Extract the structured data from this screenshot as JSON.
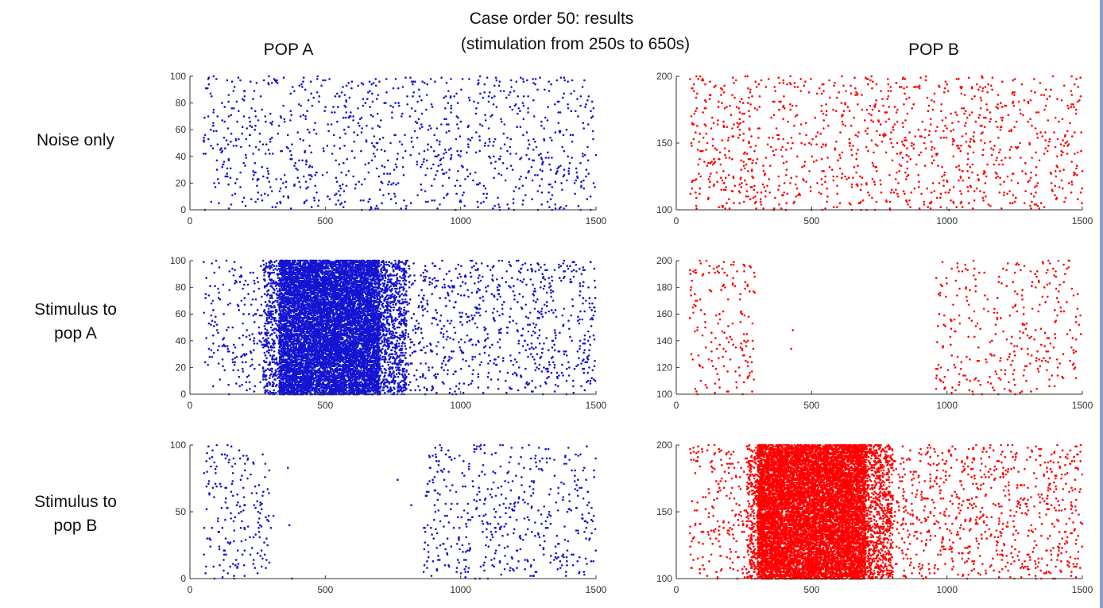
{
  "title_line1": "Case order 50: results",
  "title_line2": "(stimulation from 250s to 650s)",
  "col_a_label": "POP A",
  "col_b_label": "POP B",
  "row_labels": {
    "row1": "Noise only",
    "row2_line1": "Stimulus to",
    "row2_line2": "pop A",
    "row3_line1": "Stimulus to",
    "row3_line2": "pop B"
  },
  "colors": {
    "pop_a": "#1414d2",
    "pop_b": "#ff0000",
    "axis": "#333333"
  },
  "chart_data": [
    {
      "type": "scatter",
      "name": "POP A - Noise only",
      "xlim": [
        0,
        1500
      ],
      "ylim": [
        0,
        100
      ],
      "xticks": [
        0,
        500,
        1000,
        1500
      ],
      "yticks": [
        0,
        20,
        40,
        60,
        80,
        100
      ],
      "color": "#1414d2",
      "segments": [
        {
          "from": 50,
          "to": 1500,
          "rate": 0.7
        }
      ]
    },
    {
      "type": "scatter",
      "name": "POP B - Noise only",
      "xlim": [
        0,
        1500
      ],
      "ylim": [
        100,
        200
      ],
      "xticks": [
        0,
        500,
        1000,
        1500
      ],
      "yticks": [
        100,
        150,
        200
      ],
      "color": "#ff0000",
      "segments": [
        {
          "from": 50,
          "to": 1500,
          "rate": 0.8
        }
      ]
    },
    {
      "type": "scatter",
      "name": "POP A - Stimulus to pop A",
      "xlim": [
        0,
        1500
      ],
      "ylim": [
        0,
        100
      ],
      "xticks": [
        0,
        500,
        1000,
        1500
      ],
      "yticks": [
        0,
        20,
        40,
        60,
        80,
        100
      ],
      "color": "#1414d2",
      "segments": [
        {
          "from": 50,
          "to": 270,
          "rate": 0.8
        },
        {
          "from": 270,
          "to": 330,
          "rate": 6
        },
        {
          "from": 330,
          "to": 700,
          "rate": 28
        },
        {
          "from": 700,
          "to": 800,
          "rate": 8
        },
        {
          "from": 800,
          "to": 1500,
          "rate": 1.1
        }
      ]
    },
    {
      "type": "scatter",
      "name": "POP B - Stimulus to pop A",
      "xlim": [
        0,
        1500
      ],
      "ylim": [
        100,
        200
      ],
      "xticks": [
        0,
        500,
        1000,
        1500
      ],
      "yticks": [
        100,
        120,
        140,
        160,
        180,
        200
      ],
      "color": "#ff0000",
      "segments": [
        {
          "from": 50,
          "to": 290,
          "rate": 0.7
        },
        {
          "from": 420,
          "to": 440,
          "rate": 0.1
        },
        {
          "from": 960,
          "to": 1500,
          "rate": 0.6
        }
      ]
    },
    {
      "type": "scatter",
      "name": "POP A - Stimulus to pop B",
      "xlim": [
        0,
        1500
      ],
      "ylim": [
        0,
        100
      ],
      "xticks": [
        0,
        500,
        1000,
        1500
      ],
      "yticks": [
        0,
        50,
        100
      ],
      "color": "#1414d2",
      "segments": [
        {
          "from": 50,
          "to": 300,
          "rate": 0.75
        },
        {
          "from": 300,
          "to": 380,
          "rate": 0.05
        },
        {
          "from": 760,
          "to": 840,
          "rate": 0.03
        },
        {
          "from": 860,
          "to": 1500,
          "rate": 0.75
        }
      ]
    },
    {
      "type": "scatter",
      "name": "POP B - Stimulus to pop B",
      "xlim": [
        0,
        1500
      ],
      "ylim": [
        100,
        200
      ],
      "xticks": [
        0,
        500,
        1000,
        1500
      ],
      "yticks": [
        100,
        150,
        200
      ],
      "color": "#ff0000",
      "segments": [
        {
          "from": 50,
          "to": 260,
          "rate": 0.9
        },
        {
          "from": 260,
          "to": 300,
          "rate": 6
        },
        {
          "from": 300,
          "to": 700,
          "rate": 28
        },
        {
          "from": 700,
          "to": 800,
          "rate": 8
        },
        {
          "from": 800,
          "to": 1500,
          "rate": 1.1
        }
      ]
    }
  ]
}
